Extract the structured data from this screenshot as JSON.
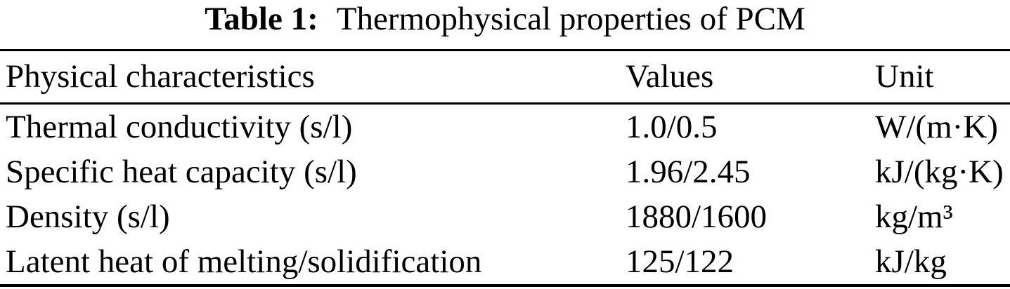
{
  "caption": {
    "label": "Table 1:",
    "text": "Thermophysical properties of PCM"
  },
  "table": {
    "headers": {
      "characteristic": "Physical characteristics",
      "values": "Values",
      "unit": "Unit"
    },
    "rows": [
      {
        "characteristic": "Thermal conductivity (s/l)",
        "values": "1.0/0.5",
        "unit": "W/(m·K)"
      },
      {
        "characteristic": "Specific heat capacity (s/l)",
        "values": "1.96/2.45",
        "unit": "kJ/(kg·K)"
      },
      {
        "characteristic": "Density (s/l)",
        "values": "1880/1600",
        "unit": "kg/m³"
      },
      {
        "characteristic": "Latent heat of melting/solidification",
        "values": "125/122",
        "unit": "kJ/kg"
      }
    ]
  },
  "colors": {
    "text": "#000000",
    "background": "#ffffff",
    "rule": "#000000"
  }
}
